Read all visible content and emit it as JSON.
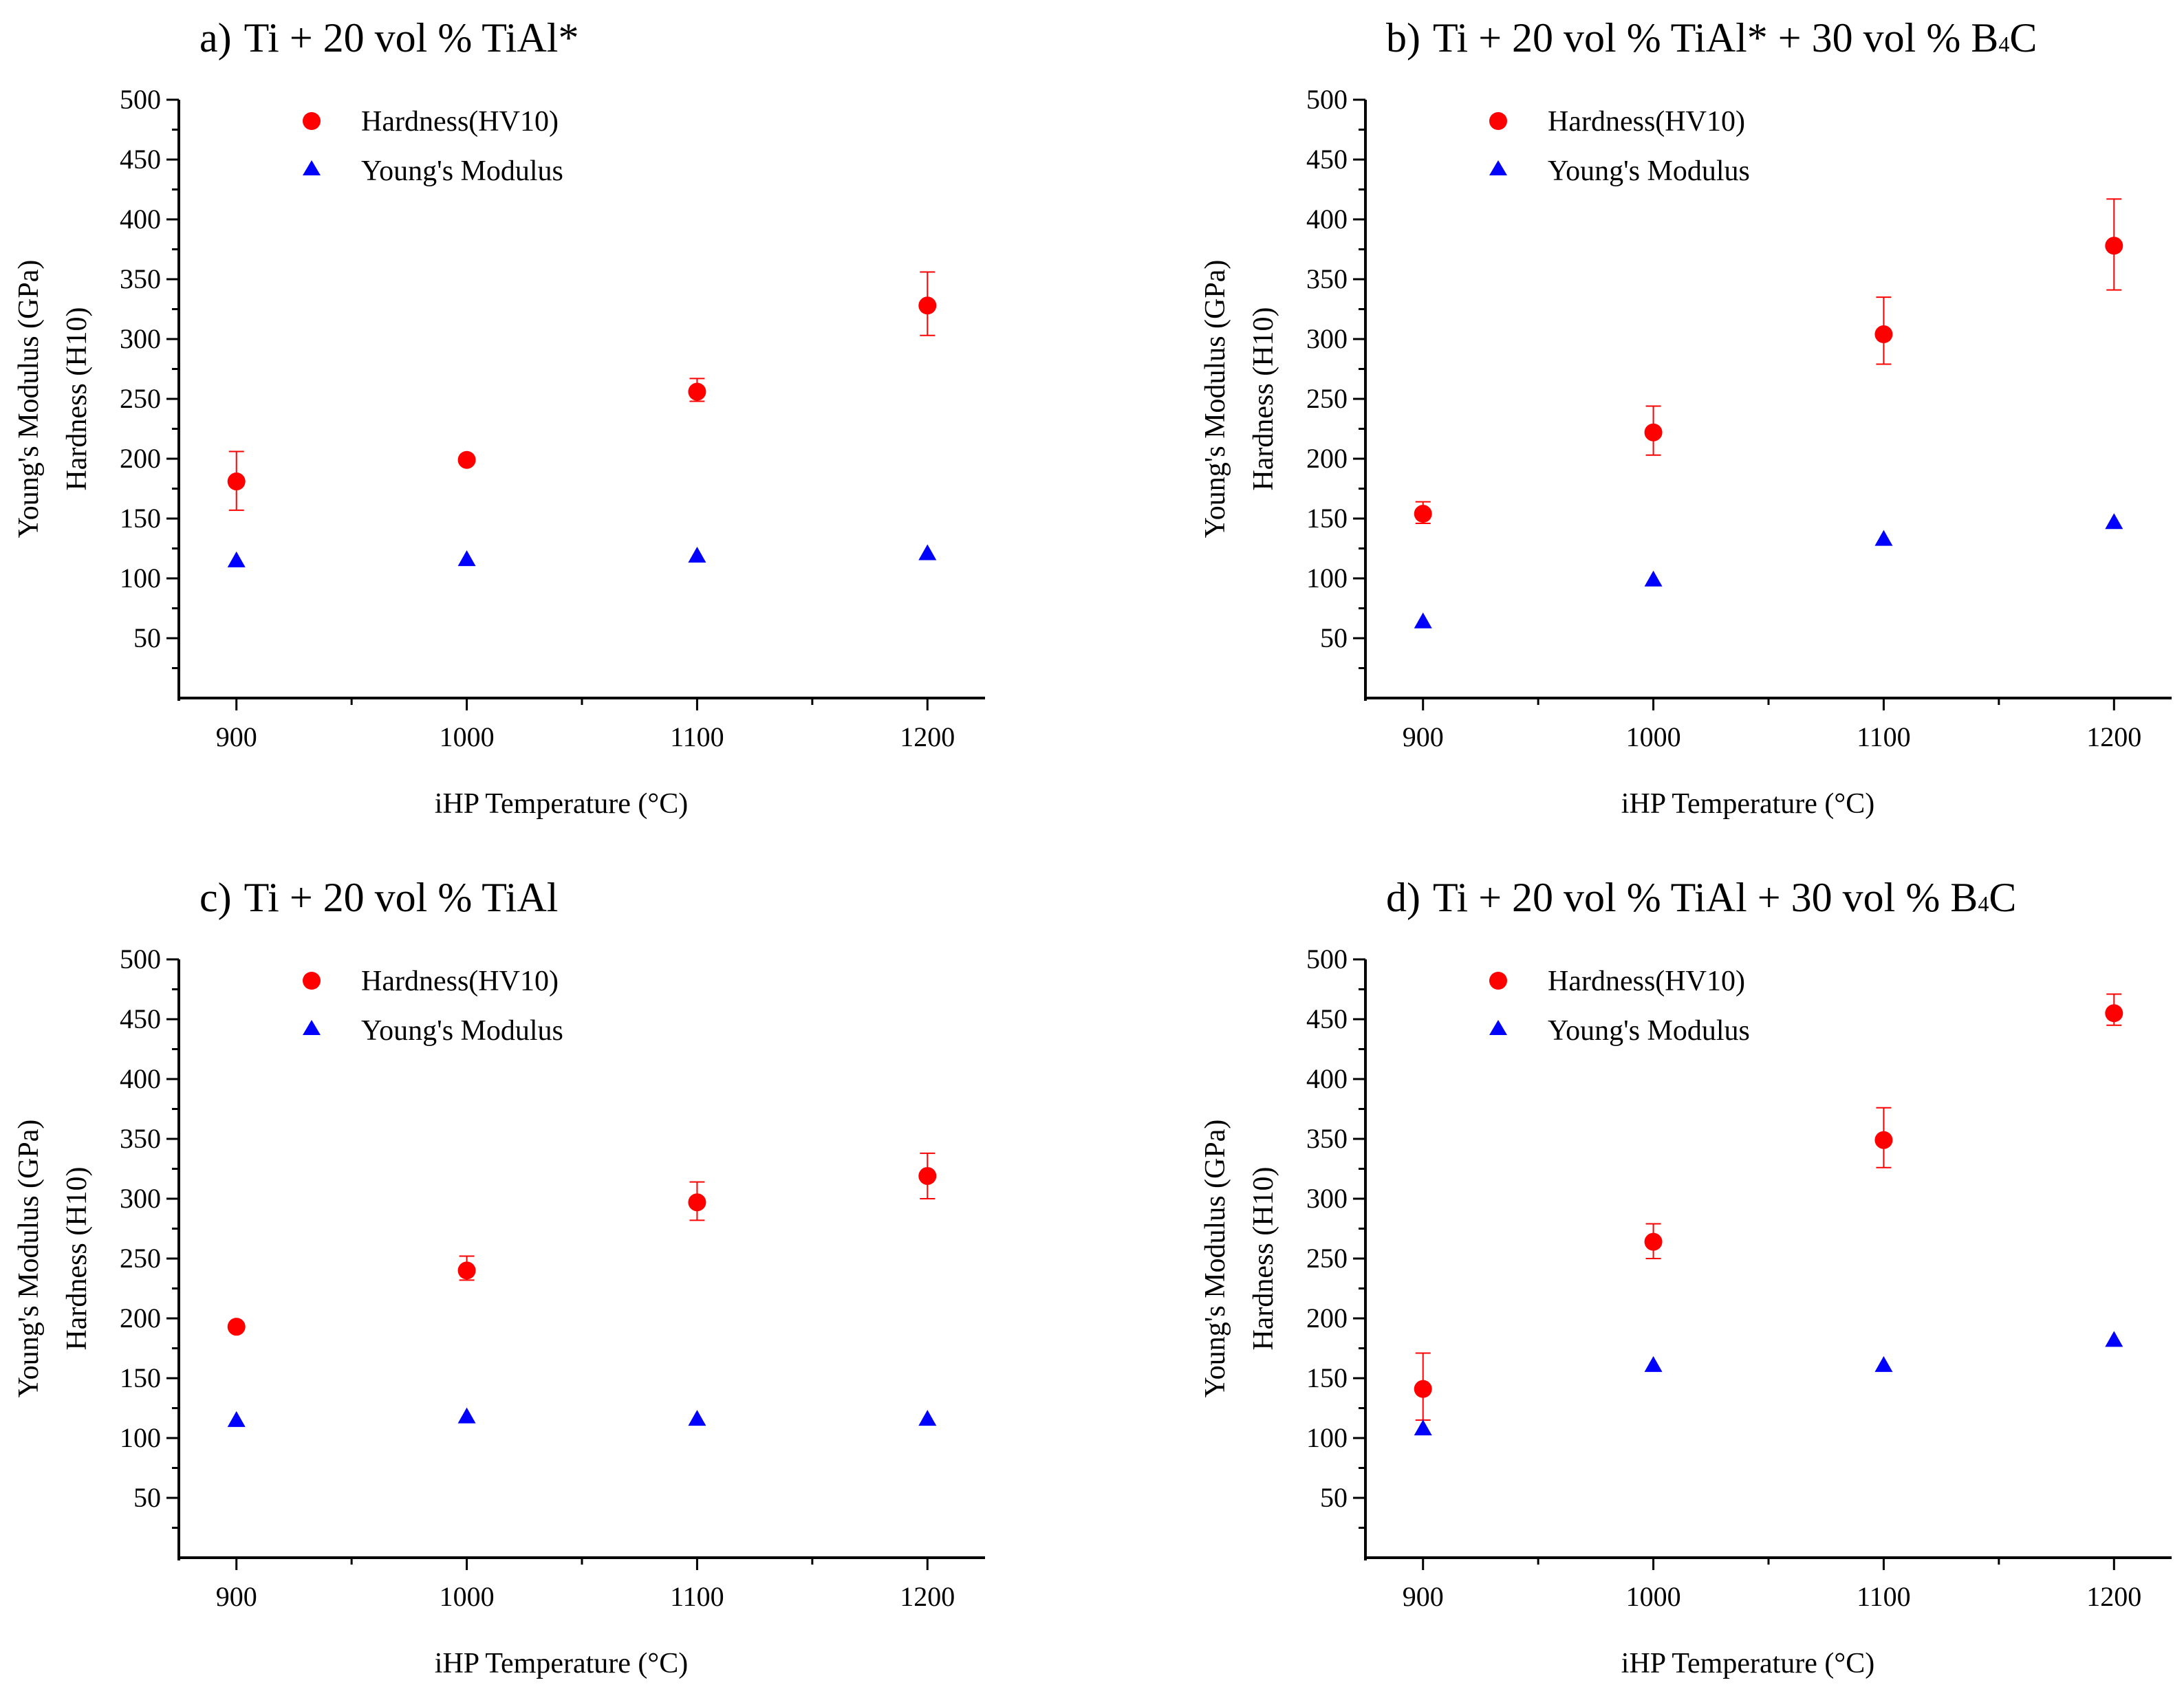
{
  "colors": {
    "hardness": "#ff0000",
    "modulus": "#0000ff",
    "axis": "#000000"
  },
  "chart_data": [
    {
      "type": "scatter",
      "title_label": "a)",
      "title_text": "Ti + 20 vol % TiAl*",
      "xlabel": "iHP Temperature (°C)",
      "ylabel_outer": "Young's Modulus (GPa)",
      "ylabel_inner": "Hardness (H10)",
      "xlim": [
        875,
        1225
      ],
      "ylim": [
        0,
        500
      ],
      "xticks": [
        900,
        1000,
        1100,
        1200
      ],
      "xtick_labels": [
        "900",
        "1000",
        "1100",
        "1200"
      ],
      "yticks": [
        50,
        100,
        150,
        200,
        250,
        300,
        350,
        400,
        450,
        500
      ],
      "ytick_labels": [
        "50",
        "100",
        "150",
        "200",
        "250",
        "300",
        "350",
        "400",
        "450",
        "500"
      ],
      "legend": [
        "Hardness(HV10)",
        "Young's Modulus"
      ],
      "x": [
        900,
        1000,
        1100,
        1200
      ],
      "series": [
        {
          "name": "Hardness(HV10)",
          "marker": "circle",
          "values": [
            181,
            199,
            256,
            328
          ],
          "err_low": [
            24,
            3,
            8,
            25
          ],
          "err_high": [
            25,
            3,
            11,
            28
          ]
        },
        {
          "name": "Young's Modulus",
          "marker": "triangle",
          "values": [
            115,
            116,
            119,
            121
          ]
        }
      ]
    },
    {
      "type": "scatter",
      "title_label": "b)",
      "title_text": "Ti + 20 vol % TiAl* + 30 vol % B",
      "title_sub": "4",
      "title_tail": "C",
      "xlabel": "iHP Temperature (°C)",
      "ylabel_outer": "Young's Modulus (GPa)",
      "ylabel_inner": "Hardness (H10)",
      "xlim": [
        875,
        1225
      ],
      "ylim": [
        0,
        500
      ],
      "xticks": [
        900,
        1000,
        1100,
        1200
      ],
      "xtick_labels": [
        "900",
        "1000",
        "1100",
        "1200"
      ],
      "yticks": [
        50,
        100,
        150,
        200,
        250,
        300,
        350,
        400,
        450,
        500
      ],
      "ytick_labels": [
        "50",
        "100",
        "150",
        "200",
        "250",
        "300",
        "350",
        "400",
        "450",
        "500"
      ],
      "legend": [
        "Hardness(HV10)",
        "Young's Modulus"
      ],
      "x": [
        900,
        1000,
        1100,
        1200
      ],
      "series": [
        {
          "name": "Hardness(HV10)",
          "marker": "circle",
          "values": [
            154,
            222,
            304,
            378
          ],
          "err_low": [
            8,
            19,
            25,
            37
          ],
          "err_high": [
            10,
            22,
            31,
            39
          ]
        },
        {
          "name": "Young's Modulus",
          "marker": "triangle",
          "values": [
            64,
            99,
            133,
            147
          ]
        }
      ]
    },
    {
      "type": "scatter",
      "title_label": "c)",
      "title_text": "Ti + 20 vol % TiAl",
      "xlabel": "iHP Temperature (°C)",
      "ylabel_outer": "Young's Modulus (GPa)",
      "ylabel_inner": "Hardness (H10)",
      "xlim": [
        875,
        1225
      ],
      "ylim": [
        0,
        500
      ],
      "xticks": [
        900,
        1000,
        1100,
        1200
      ],
      "xtick_labels": [
        "900",
        "1000",
        "1100",
        "1200"
      ],
      "yticks": [
        50,
        100,
        150,
        200,
        250,
        300,
        350,
        400,
        450,
        500
      ],
      "ytick_labels": [
        "50",
        "100",
        "150",
        "200",
        "250",
        "300",
        "350",
        "400",
        "450",
        "500"
      ],
      "legend": [
        "Hardness(HV10)",
        "Young's Modulus"
      ],
      "x": [
        900,
        1000,
        1100,
        1200
      ],
      "series": [
        {
          "name": "Hardness(HV10)",
          "marker": "circle",
          "values": [
            193,
            240,
            297,
            319
          ],
          "err_low": [
            3,
            8,
            15,
            19
          ],
          "err_high": [
            3,
            12,
            17,
            19
          ]
        },
        {
          "name": "Young's Modulus",
          "marker": "triangle",
          "values": [
            115,
            118,
            116,
            116
          ]
        }
      ]
    },
    {
      "type": "scatter",
      "title_label": "d)",
      "title_text": "Ti + 20 vol % TiAl + 30 vol % B",
      "title_sub": "4",
      "title_tail": "C",
      "xlabel": "iHP Temperature (°C)",
      "ylabel_outer": "Young's Modulus (GPa)",
      "ylabel_inner": "Hardness (H10)",
      "xlim": [
        875,
        1225
      ],
      "ylim": [
        0,
        500
      ],
      "xticks": [
        900,
        1000,
        1100,
        1200
      ],
      "xtick_labels": [
        "900",
        "1000",
        "1100",
        "1200"
      ],
      "yticks": [
        50,
        100,
        150,
        200,
        250,
        300,
        350,
        400,
        450,
        500
      ],
      "ytick_labels": [
        "50",
        "100",
        "150",
        "200",
        "250",
        "300",
        "350",
        "400",
        "450",
        "500"
      ],
      "legend": [
        "Hardness(HV10)",
        "Young's Modulus"
      ],
      "x": [
        900,
        1000,
        1100,
        1200
      ],
      "series": [
        {
          "name": "Hardness(HV10)",
          "marker": "circle",
          "values": [
            141,
            264,
            349,
            455
          ],
          "err_low": [
            26,
            14,
            23,
            10
          ],
          "err_high": [
            30,
            15,
            27,
            16
          ]
        },
        {
          "name": "Young's Modulus",
          "marker": "triangle",
          "values": [
            108,
            161,
            161,
            182
          ]
        }
      ]
    }
  ]
}
